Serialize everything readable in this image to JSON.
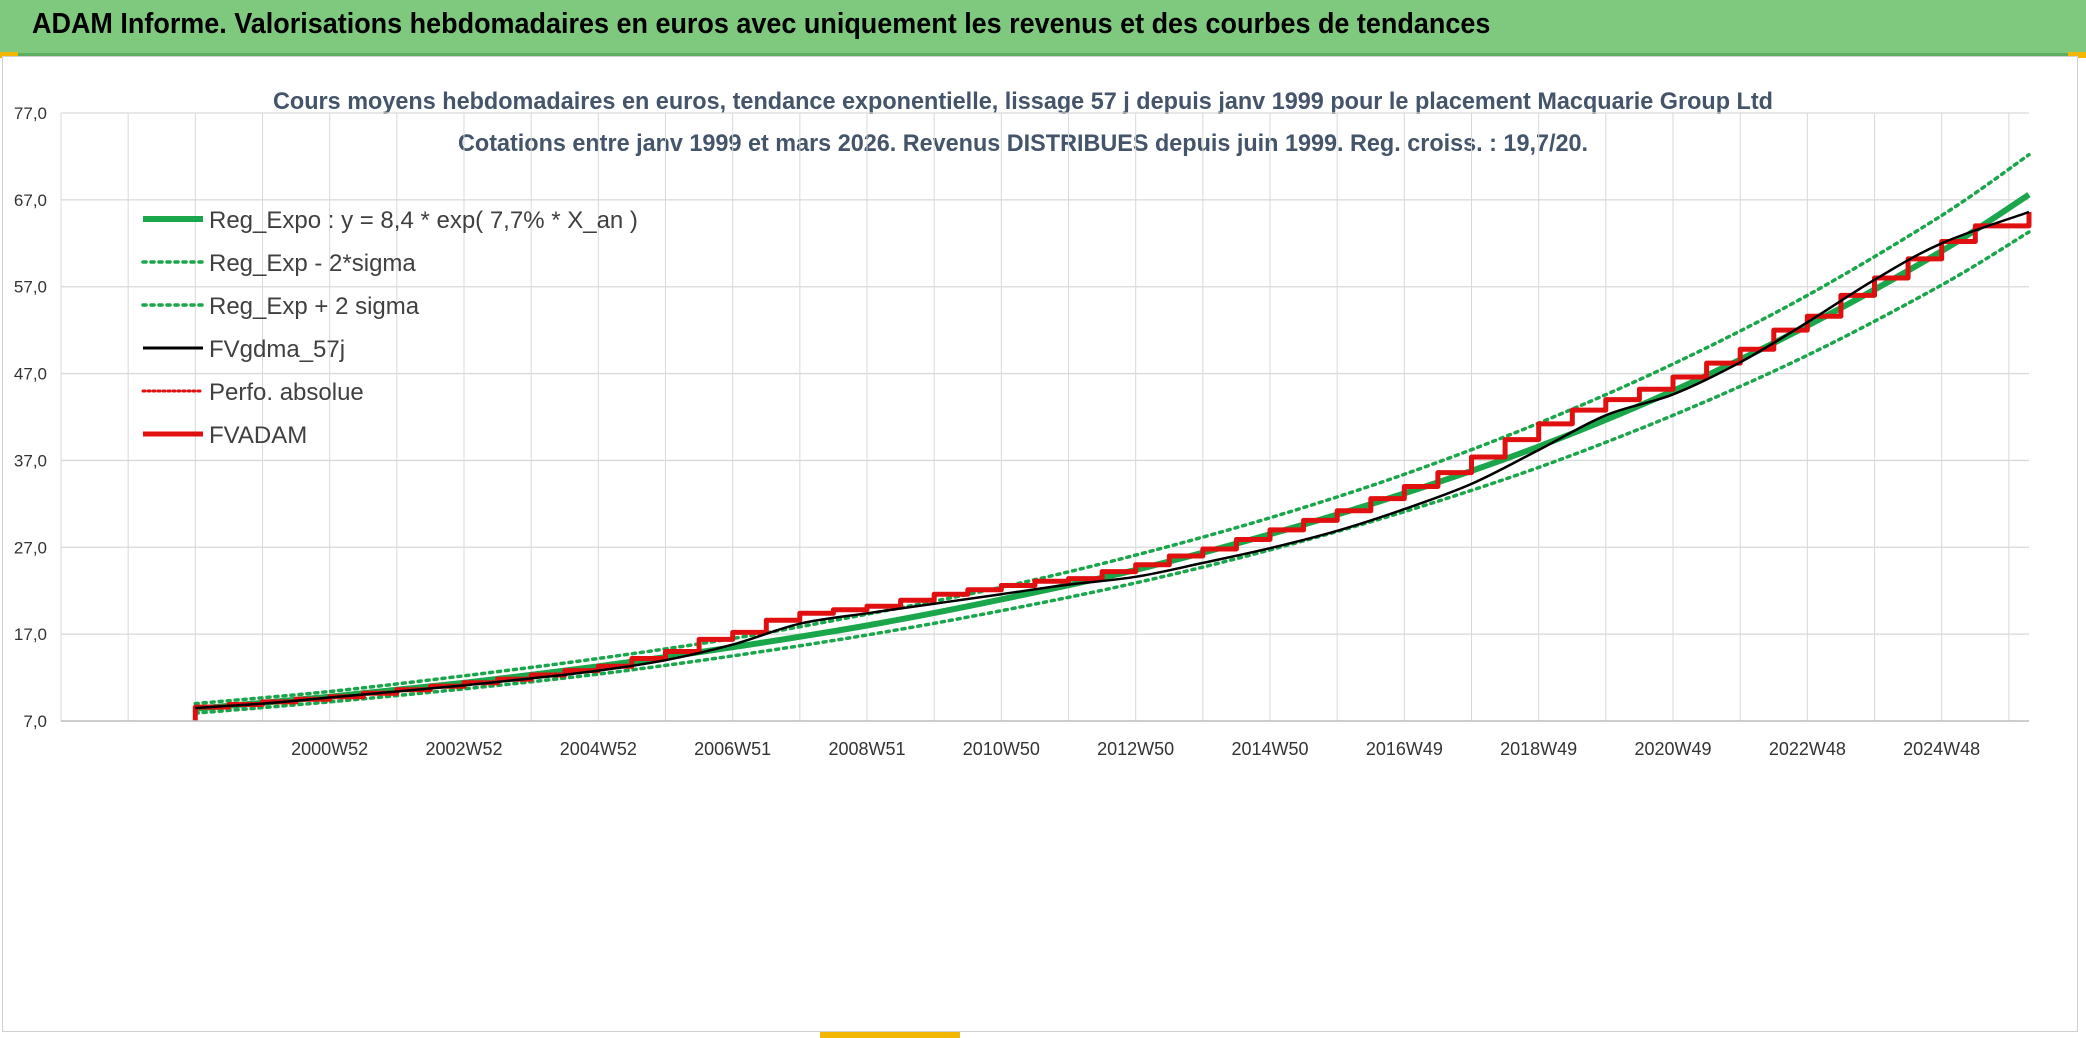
{
  "header": {
    "title": "ADAM Informe. Valorisations hebdomadaires en euros avec uniquement les revenus et des courbes de tendances"
  },
  "colors": {
    "header_bg": "#7fc97f",
    "reg_green": "#1aa64a",
    "fv_red": "#e01010",
    "fv_black": "#000000",
    "grid": "#d9d9d9",
    "title_text": "#44546a"
  },
  "chart_data": {
    "type": "line",
    "title": "Cours moyens hebdomadaires en euros, tendance exponentielle, lissage 57 j depuis janv 1999 pour le placement Macquarie Group Ltd",
    "subtitle": "Cotations entre janv 1999 et mars 2026. Revenus DISTRIBUES depuis juin 1999. Reg. croiss. : 19,7/20.",
    "xlabel": "",
    "ylabel": "",
    "ylim": [
      7.0,
      77.0
    ],
    "xlim_years": [
      1997.0,
      2026.3
    ],
    "y_ticks": [
      "7,0",
      "17,0",
      "27,0",
      "37,0",
      "47,0",
      "57,0",
      "67,0",
      "77,0"
    ],
    "y_tick_values": [
      7,
      17,
      27,
      37,
      47,
      57,
      67,
      77
    ],
    "x_tick_labels": [
      "2000W52",
      "2002W52",
      "2004W52",
      "2006W51",
      "2008W51",
      "2010W50",
      "2012W50",
      "2014W50",
      "2016W49",
      "2018W49",
      "2020W49",
      "2022W48",
      "2024W48"
    ],
    "x_tick_years": [
      2001.0,
      2003.0,
      2005.0,
      2007.0,
      2009.0,
      2011.0,
      2013.0,
      2015.0,
      2017.0,
      2019.0,
      2021.0,
      2023.0,
      2025.0
    ],
    "legend_position": "top-left",
    "series": [
      {
        "name": "Reg_Expo : y = 8,4 * exp( 7,7% *  X_an )",
        "style": "solid-thick",
        "color": "#1aa64a",
        "x": [
          1999.0,
          2001.0,
          2003.0,
          2005.0,
          2007.0,
          2009.0,
          2011.0,
          2013.0,
          2015.0,
          2017.0,
          2019.0,
          2021.0,
          2023.0,
          2025.0,
          2026.3
        ],
        "values": [
          8.4,
          9.8,
          11.4,
          13.3,
          15.5,
          18.0,
          21.0,
          24.4,
          28.5,
          33.2,
          38.6,
          45.0,
          52.5,
          61.1,
          67.6
        ]
      },
      {
        "name": "Reg_Exp - 2*sigma",
        "style": "dotted",
        "color": "#1aa64a",
        "x": [
          1999.0,
          2001.0,
          2003.0,
          2005.0,
          2007.0,
          2009.0,
          2011.0,
          2013.0,
          2015.0,
          2017.0,
          2019.0,
          2021.0,
          2023.0,
          2025.0,
          2026.3
        ],
        "values": [
          7.9,
          9.2,
          10.7,
          12.4,
          14.5,
          16.9,
          19.7,
          22.9,
          26.7,
          31.1,
          36.2,
          42.2,
          49.1,
          57.2,
          63.3
        ]
      },
      {
        "name": "Reg_Exp + 2 sigma",
        "style": "dotted",
        "color": "#1aa64a",
        "x": [
          1999.0,
          2001.0,
          2003.0,
          2005.0,
          2007.0,
          2009.0,
          2011.0,
          2013.0,
          2015.0,
          2017.0,
          2019.0,
          2021.0,
          2023.0,
          2025.0,
          2026.3
        ],
        "values": [
          9.0,
          10.4,
          12.2,
          14.2,
          16.5,
          19.3,
          22.4,
          26.1,
          30.4,
          35.4,
          41.3,
          48.1,
          56.0,
          65.2,
          72.2
        ]
      },
      {
        "name": "FVgdma_57j",
        "style": "solid",
        "color": "#000000",
        "x": [
          1999.0,
          2000.0,
          2001.0,
          2002.0,
          2003.0,
          2004.0,
          2005.0,
          2006.0,
          2007.0,
          2008.0,
          2009.0,
          2010.0,
          2011.0,
          2012.0,
          2013.0,
          2014.0,
          2015.0,
          2016.0,
          2017.0,
          2018.0,
          2019.0,
          2020.0,
          2021.0,
          2022.0,
          2023.0,
          2024.0,
          2025.0,
          2026.3
        ],
        "values": [
          8.5,
          9.0,
          9.7,
          10.4,
          11.1,
          11.9,
          12.8,
          14.0,
          15.8,
          18.2,
          19.4,
          20.5,
          21.6,
          22.7,
          23.6,
          25.2,
          26.9,
          28.9,
          31.4,
          34.3,
          38.2,
          42.2,
          44.6,
          48.3,
          52.9,
          57.8,
          62.0,
          65.6
        ]
      },
      {
        "name": "Perfo. absolue",
        "style": "dotted",
        "color": "#e01010",
        "x": [
          1999.0,
          2000.0,
          2001.0,
          2002.0,
          2003.0,
          2004.0,
          2005.0,
          2006.0,
          2007.0,
          2008.0,
          2009.0,
          2010.0,
          2011.0,
          2012.0,
          2013.0,
          2014.0,
          2015.0,
          2016.0,
          2017.0,
          2018.0,
          2019.0,
          2020.0,
          2021.0,
          2022.0,
          2023.0,
          2024.0,
          2025.0,
          2026.3
        ],
        "values": [
          8.5,
          9.0,
          9.7,
          10.4,
          11.1,
          11.9,
          12.8,
          14.0,
          15.8,
          18.2,
          19.4,
          20.5,
          21.6,
          22.7,
          23.6,
          25.2,
          26.9,
          28.9,
          31.4,
          34.3,
          38.2,
          42.2,
          44.6,
          48.3,
          52.9,
          57.8,
          62.0,
          65.6
        ]
      },
      {
        "name": "FVADAM",
        "style": "step-thick",
        "color": "#e01010",
        "x": [
          1999.0,
          1999.5,
          2000.0,
          2000.5,
          2001.0,
          2001.5,
          2002.0,
          2002.5,
          2003.0,
          2003.5,
          2004.0,
          2004.5,
          2005.0,
          2005.5,
          2006.0,
          2006.5,
          2007.0,
          2007.5,
          2008.0,
          2008.5,
          2009.0,
          2009.5,
          2010.0,
          2010.5,
          2011.0,
          2011.5,
          2012.0,
          2012.5,
          2013.0,
          2013.5,
          2014.0,
          2014.5,
          2015.0,
          2015.5,
          2016.0,
          2016.5,
          2017.0,
          2017.5,
          2018.0,
          2018.5,
          2019.0,
          2019.5,
          2020.0,
          2020.5,
          2021.0,
          2021.5,
          2022.0,
          2022.5,
          2023.0,
          2023.5,
          2024.0,
          2024.5,
          2025.0,
          2025.5,
          2026.3
        ],
        "values": [
          8.6,
          8.9,
          9.2,
          9.5,
          9.8,
          10.2,
          10.6,
          11.0,
          11.4,
          11.8,
          12.3,
          12.8,
          13.3,
          14.2,
          15.0,
          16.4,
          17.2,
          18.6,
          19.4,
          19.8,
          20.2,
          20.9,
          21.6,
          22.1,
          22.6,
          23.1,
          23.4,
          24.2,
          25.0,
          26.0,
          26.8,
          27.9,
          29.0,
          30.1,
          31.2,
          32.6,
          34.0,
          35.6,
          37.4,
          39.4,
          41.2,
          42.8,
          44.0,
          45.2,
          46.6,
          48.2,
          49.8,
          52.0,
          53.6,
          56.0,
          58.0,
          60.2,
          62.2,
          64.0,
          65.6
        ]
      }
    ]
  }
}
